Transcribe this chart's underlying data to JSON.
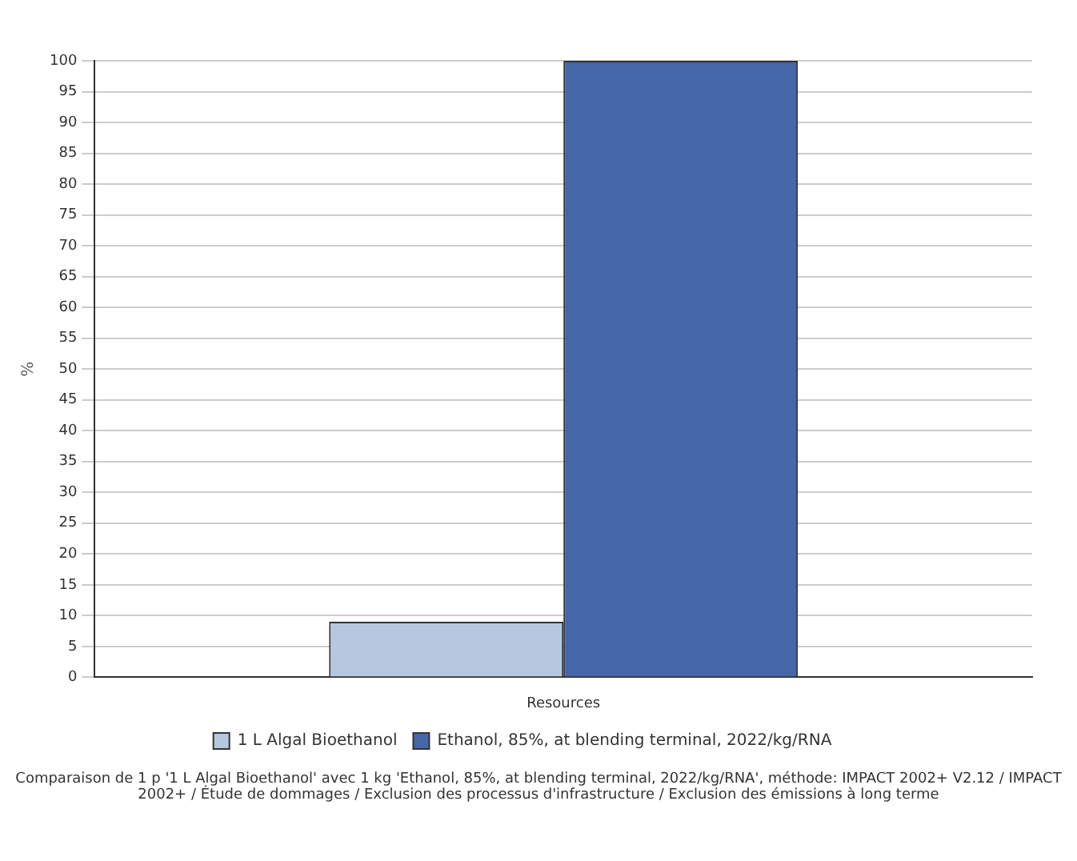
{
  "chart_data": {
    "type": "bar",
    "ylabel": "%",
    "categories": [
      "Resources"
    ],
    "series": [
      {
        "name": "1 L Algal Bioethanol",
        "color": "#b7c7e0",
        "values": [
          9
        ]
      },
      {
        "name": "Ethanol, 85%, at blending terminal, 2022/kg/RNA",
        "color": "#4566a8",
        "values": [
          100
        ]
      }
    ],
    "ylim": [
      0,
      100
    ],
    "yticks": [
      0,
      5,
      10,
      15,
      20,
      25,
      30,
      35,
      40,
      45,
      50,
      55,
      60,
      65,
      70,
      75,
      80,
      85,
      90,
      95,
      100
    ],
    "grid": "y",
    "legend": "bottom",
    "annotations": [
      "Comparaison de 1 p '1 L Algal Bioethanol' avec 1 kg 'Ethanol, 85%, at blending terminal, 2022/kg/RNA', méthode: IMPACT 2002+ V2.12 / IMPACT 2002+ / Étude de dommages / Exclusion des processus d'infrastructure / Exclusion des émissions à long terme"
    ]
  }
}
